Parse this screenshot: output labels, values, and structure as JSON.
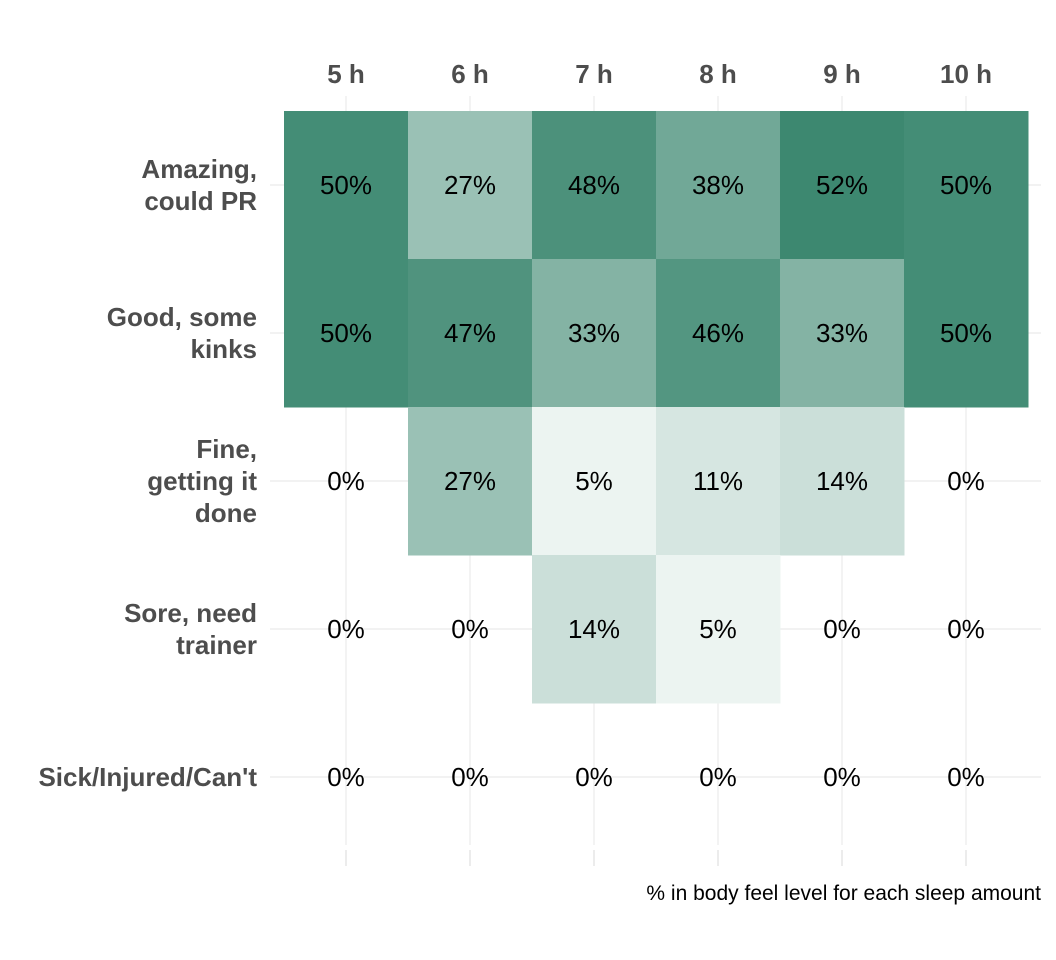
{
  "chart_data": {
    "type": "heatmap",
    "x_categories": [
      "5 h",
      "6 h",
      "7 h",
      "8 h",
      "9 h",
      "10 h"
    ],
    "y_categories": [
      "Amazing,\ncould PR",
      "Good, some\nkinks",
      "Fine,\ngetting it\ndone",
      "Sore, need\ntrainer",
      "Sick/Injured/Can't"
    ],
    "values": [
      [
        50,
        27,
        48,
        38,
        52,
        50
      ],
      [
        50,
        47,
        33,
        46,
        33,
        50
      ],
      [
        0,
        27,
        5,
        11,
        14,
        0
      ],
      [
        0,
        0,
        14,
        5,
        0,
        0
      ],
      [
        0,
        0,
        0,
        0,
        0,
        0
      ]
    ],
    "value_suffix": "%",
    "caption": "% in body feel level for each sleep amount",
    "x_axis_position": "top",
    "color_low": "#ffffff",
    "color_high": "#3d8870",
    "color_max_value": 52,
    "grid": true
  }
}
